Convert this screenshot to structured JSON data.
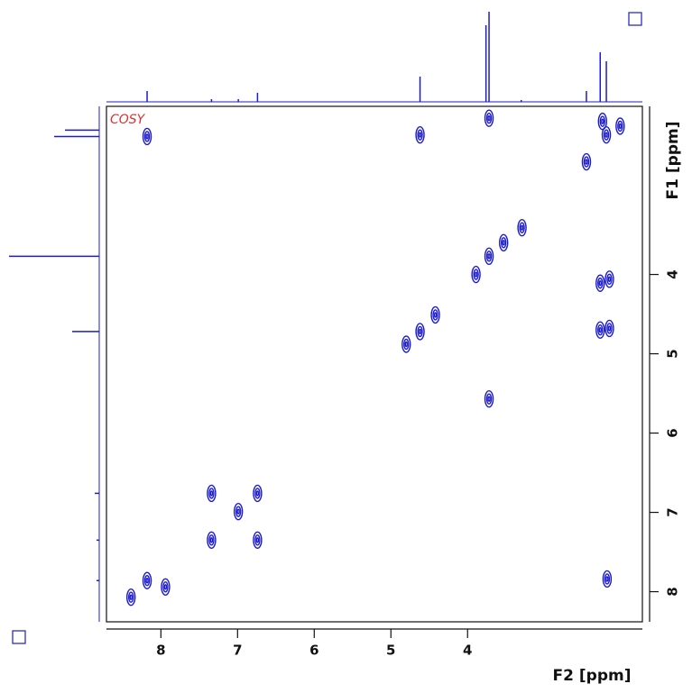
{
  "chart_data": {
    "type": "contour",
    "title": "COSY",
    "x_label": "F2 [ppm]",
    "y_label": "F1 [ppm]",
    "color": "#1c1ccf",
    "title_color": "#e03030",
    "xlim": [
      8.71,
      1.72
    ],
    "ylim": [
      1.88,
      8.38
    ],
    "xticks": [
      8,
      7,
      6,
      5,
      4
    ],
    "yticks": [
      4,
      5,
      6,
      7,
      8
    ],
    "x": [
      8.18,
      4.62,
      3.72,
      2.19,
      2.24,
      2.45,
      2.01,
      3.29,
      3.53,
      3.72,
      3.89,
      2.27,
      2.15,
      4.42,
      4.62,
      4.8,
      2.27,
      2.15,
      3.72,
      7.34,
      6.99,
      6.74,
      6.74,
      7.34,
      8.18,
      7.94,
      8.39,
      2.18
    ],
    "y": [
      2.26,
      2.24,
      2.03,
      2.24,
      2.07,
      2.58,
      2.13,
      3.41,
      3.6,
      3.77,
      4.0,
      4.11,
      4.06,
      4.51,
      4.72,
      4.88,
      4.7,
      4.68,
      5.57,
      6.76,
      6.99,
      6.76,
      7.35,
      7.35,
      7.86,
      7.94,
      8.07,
      7.84
    ],
    "f2_projection": {
      "x": [
        8.18,
        7.34,
        6.99,
        6.74,
        4.62,
        3.76,
        3.72,
        3.3,
        2.45,
        2.27,
        2.19
      ],
      "values": [
        12,
        3,
        3,
        10,
        28,
        85,
        100,
        2,
        12,
        55,
        45
      ]
    },
    "f1_projection": {
      "y": [
        2.26,
        2.18,
        3.77,
        4.72,
        6.76,
        7.35,
        7.86
      ],
      "values": [
        50,
        38,
        100,
        30,
        5,
        3,
        3
      ]
    }
  }
}
